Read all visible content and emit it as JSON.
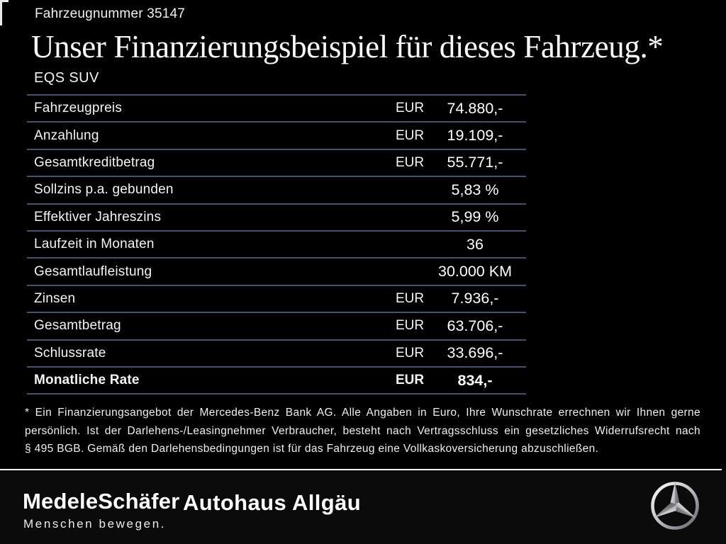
{
  "header": {
    "vehicle_number": "Fahrzeugnummer 35147",
    "title": "Unser Finanzierungsbeispiel für dieses Fahrzeug.*",
    "model": "EQS SUV"
  },
  "table": {
    "rows": [
      {
        "label": "Fahrzeugpreis",
        "currency": "EUR",
        "value": "74.880,-",
        "bold": false
      },
      {
        "label": "Anzahlung",
        "currency": "EUR",
        "value": "19.109,-",
        "bold": false
      },
      {
        "label": "Gesamtkreditbetrag",
        "currency": "EUR",
        "value": "55.771,-",
        "bold": false
      },
      {
        "label": "Sollzins p.a. gebunden",
        "currency": "",
        "value": "5,83 %",
        "bold": false
      },
      {
        "label": "Effektiver Jahreszins",
        "currency": "",
        "value": "5,99 %",
        "bold": false
      },
      {
        "label": "Laufzeit in Monaten",
        "currency": "",
        "value": "36",
        "bold": false
      },
      {
        "label": "Gesamtlaufleistung",
        "currency": "",
        "value": "30.000 KM",
        "bold": false
      },
      {
        "label": "Zinsen",
        "currency": "EUR",
        "value": "7.936,-",
        "bold": false
      },
      {
        "label": "Gesamtbetrag",
        "currency": "EUR",
        "value": "63.706,-",
        "bold": false
      },
      {
        "label": "Schlussrate",
        "currency": "EUR",
        "value": "33.696,-",
        "bold": false
      },
      {
        "label": "Monatliche Rate",
        "currency": "EUR",
        "value": "834,-",
        "bold": true
      }
    ]
  },
  "footnote": {
    "lines": [
      "* Ein Finanzierungsangebot der Mercedes-Benz Bank AG. Alle Angaben in Euro, Ihre Wunschrate errechnen wir Ihnen gerne",
      "persönlich. Ist der Darlehens-/Leasingnehmer Verbraucher, besteht nach Vertragsschluss ein gesetzliches Widerrufsrecht nach",
      "§ 495 BGB. Gemäß den Darlehensbedingungen ist für das Fahrzeug eine Vollkaskoversicherung abzuschließen."
    ]
  },
  "footer": {
    "dealer_name": "MedeleSchäfer",
    "dealer_tagline": "Menschen bewegen.",
    "dealer2_name": "Autohaus Allgäu",
    "brand_icon": "mercedes-benz-star-icon"
  },
  "colors": {
    "background": "#000000",
    "text": "#f5f5f5",
    "table_line": "#44536e",
    "footer_divider": "#f2f2f2",
    "footer_background": "#0b0b0b"
  }
}
